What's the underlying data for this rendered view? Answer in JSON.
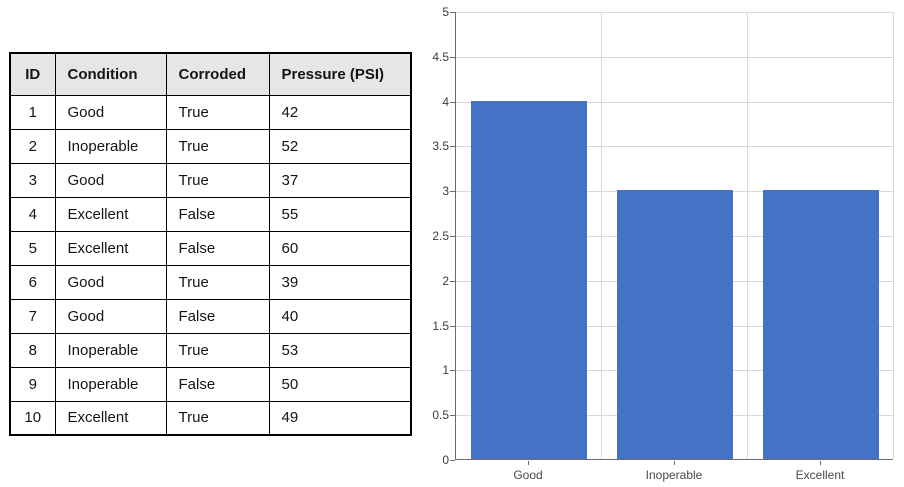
{
  "table": {
    "headers": [
      "ID",
      "Condition",
      "Corroded",
      "Pressure (PSI)"
    ],
    "rows": [
      [
        "1",
        "Good",
        "True",
        "42"
      ],
      [
        "2",
        "Inoperable",
        "True",
        "52"
      ],
      [
        "3",
        "Good",
        "True",
        "37"
      ],
      [
        "4",
        "Excellent",
        "False",
        "55"
      ],
      [
        "5",
        "Excellent",
        "False",
        "60"
      ],
      [
        "6",
        "Good",
        "True",
        "39"
      ],
      [
        "7",
        "Good",
        "False",
        "40"
      ],
      [
        "8",
        "Inoperable",
        "True",
        "53"
      ],
      [
        "9",
        "Inoperable",
        "False",
        "50"
      ],
      [
        "10",
        "Excellent",
        "True",
        "49"
      ]
    ],
    "header_bg": "#e7e6e6",
    "border_color": "#000000"
  },
  "chart_data": {
    "type": "bar",
    "categories": [
      "Good",
      "Inoperable",
      "Excellent"
    ],
    "values": [
      4,
      3,
      3
    ],
    "title": "",
    "xlabel": "",
    "ylabel": "",
    "ylim": [
      0,
      5
    ],
    "ytick_step": 0.5,
    "yticks": [
      "5",
      "4.5",
      "4",
      "3.5",
      "3",
      "2.5",
      "2",
      "1.5",
      "1",
      "0.5",
      "0"
    ],
    "grid": true,
    "legend": "none",
    "bar_color": "#4472c4",
    "gridline_color": "#d9d9d9",
    "axis_color": "#6b6b6b"
  }
}
